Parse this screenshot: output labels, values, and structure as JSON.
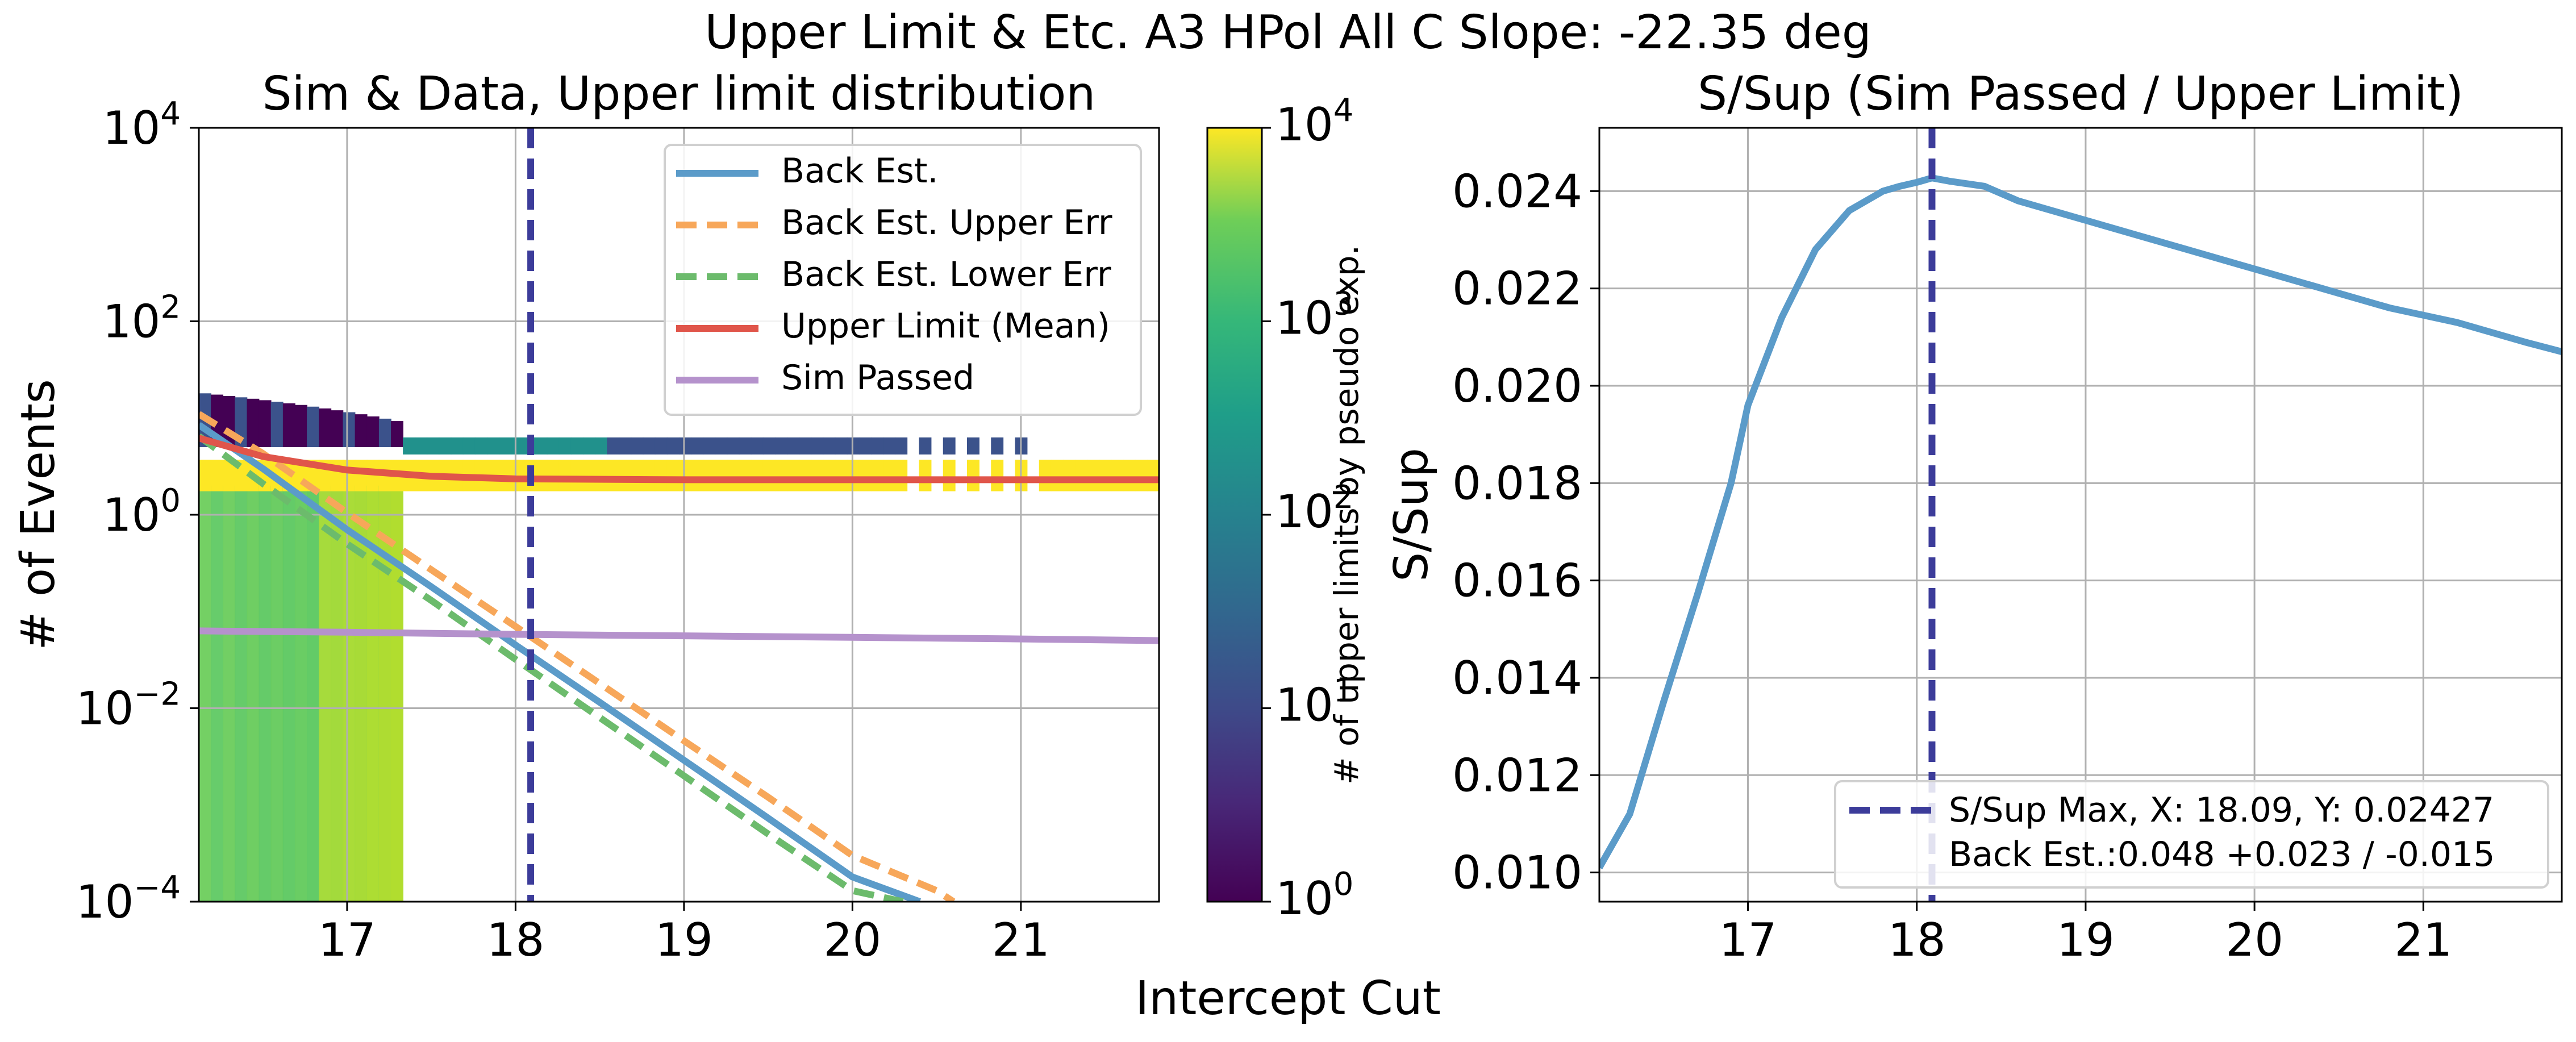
{
  "figure": {
    "suptitle": "Upper Limit & Etc. A3 HPol All C  Slope: -22.35 deg",
    "shared_xlabel": "Intercept Cut"
  },
  "colors": {
    "back_est": "#5b9bc9",
    "upper_err": "#f7a75a",
    "lower_err": "#6cbb6c",
    "upper_limit": "#e0554a",
    "sim_passed": "#b592cc",
    "vline": "#3c3c9a",
    "grid": "#b0b0b0"
  },
  "chart_data": [
    {
      "type": "heatmap",
      "title": "Sim & Data, Upper limit distribution",
      "xlabel": "",
      "ylabel": "# of Events",
      "xlim": [
        16.12,
        21.82
      ],
      "ylim_log10": [
        -4,
        4
      ],
      "yscale": "log",
      "grid": true,
      "legend_position": "top-right",
      "x_ticks": [
        17,
        18,
        19,
        20,
        21
      ],
      "y_ticks": [
        {
          "base": "10",
          "exp": "4"
        },
        {
          "base": "10",
          "exp": "2"
        },
        {
          "base": "10",
          "exp": "0"
        },
        {
          "base": "10",
          "exp": "−2"
        },
        {
          "base": "10",
          "exp": "−4"
        }
      ],
      "colorbar": {
        "label": "# of upper limits by pseudo exp.",
        "scale": "log",
        "colormap": "viridis",
        "ticks": [
          {
            "base": "10",
            "exp": "0"
          },
          {
            "base": "10",
            "exp": "1"
          },
          {
            "base": "10",
            "exp": "2"
          },
          {
            "base": "10",
            "exp": "3"
          },
          {
            "base": "10",
            "exp": "4"
          }
        ]
      },
      "series": [
        {
          "name": "Back Est.",
          "style": "solid",
          "x": [
            16.12,
            16.5,
            17.0,
            17.5,
            18.0,
            18.5,
            19.0,
            19.5,
            20.0,
            20.4
          ],
          "y": [
            8.5,
            3.0,
            0.7,
            0.18,
            0.045,
            0.0115,
            0.0029,
            0.00073,
            0.00018,
            0.0001
          ]
        },
        {
          "name": "Back Est. Upper Err",
          "style": "dashed",
          "x": [
            16.12,
            16.5,
            17.0,
            17.5,
            18.0,
            18.5,
            19.0,
            19.5,
            20.0,
            20.5,
            20.6
          ],
          "y": [
            11.0,
            4.3,
            1.05,
            0.27,
            0.07,
            0.018,
            0.0046,
            0.0012,
            0.0003,
            0.00013,
            0.0001
          ]
        },
        {
          "name": "Back Est. Lower Err",
          "style": "dashed",
          "x": [
            16.12,
            16.5,
            17.0,
            17.5,
            18.0,
            18.5,
            19.0,
            19.5,
            20.0,
            20.3
          ],
          "y": [
            6.5,
            2.1,
            0.5,
            0.13,
            0.032,
            0.008,
            0.002,
            0.0005,
            0.00013,
            0.0001
          ]
        },
        {
          "name": "Upper Limit (Mean)",
          "style": "solid",
          "x": [
            16.12,
            16.5,
            17.0,
            17.5,
            18.0,
            19.0,
            20.0,
            21.0,
            21.82
          ],
          "y": [
            6.2,
            4.0,
            2.9,
            2.5,
            2.35,
            2.3,
            2.3,
            2.3,
            2.3
          ]
        },
        {
          "name": "Sim Passed",
          "style": "solid",
          "x": [
            16.12,
            17.0,
            18.0,
            19.0,
            20.0,
            21.0,
            21.82
          ],
          "y": [
            0.063,
            0.061,
            0.058,
            0.056,
            0.054,
            0.052,
            0.05
          ]
        }
      ],
      "annotations": [
        {
          "type": "vline",
          "x": 18.09
        }
      ]
    },
    {
      "type": "line",
      "title": "S/Sup (Sim Passed / Upper Limit)",
      "xlabel": "",
      "ylabel": "S/Sup",
      "xlim": [
        16.12,
        21.82
      ],
      "ylim": [
        0.0094,
        0.0253
      ],
      "grid": true,
      "legend_position": "bottom-right",
      "x_ticks": [
        17,
        18,
        19,
        20,
        21
      ],
      "y_ticks": [
        "0.010",
        "0.012",
        "0.014",
        "0.016",
        "0.018",
        "0.020",
        "0.022",
        "0.024"
      ],
      "series": [
        {
          "name": "",
          "x": [
            16.12,
            16.3,
            16.5,
            16.7,
            16.9,
            17.0,
            17.2,
            17.4,
            17.6,
            17.8,
            17.9,
            18.0,
            18.09,
            18.2,
            18.4,
            18.6,
            18.8,
            19.0,
            19.3,
            19.6,
            20.0,
            20.4,
            20.8,
            21.2,
            21.6,
            21.82
          ],
          "y": [
            0.0101,
            0.0112,
            0.0135,
            0.0157,
            0.018,
            0.0196,
            0.0214,
            0.0228,
            0.0236,
            0.024,
            0.0241,
            0.02418,
            0.02427,
            0.0242,
            0.0241,
            0.0238,
            0.0236,
            0.0234,
            0.0231,
            0.0228,
            0.0224,
            0.022,
            0.0216,
            0.0213,
            0.0209,
            0.0207
          ]
        }
      ],
      "legend": [
        {
          "name": "S/Sup Max, X: 18.09, Y: 0.02427",
          "style": "dashed"
        },
        {
          "name": "Back Est.:0.048 +0.023 / -0.015",
          "style": "none"
        }
      ],
      "annotations": [
        {
          "type": "vline",
          "x": 18.09
        }
      ]
    }
  ]
}
